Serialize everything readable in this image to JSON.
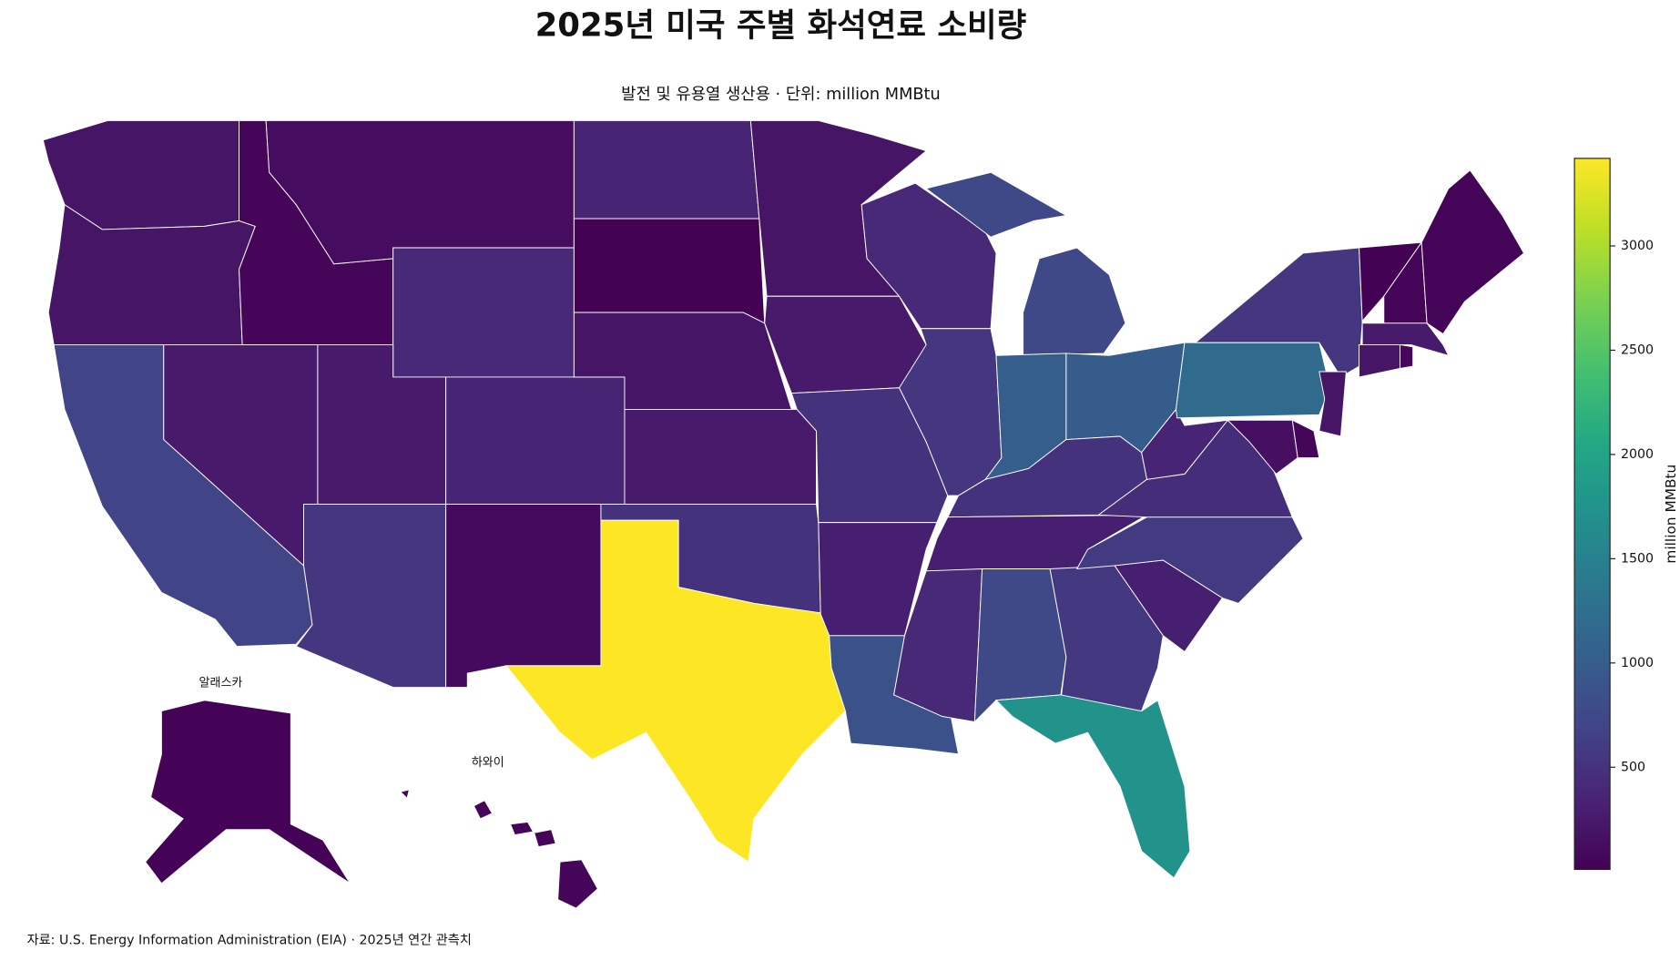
{
  "chart_data": {
    "type": "choropleth",
    "title": "2025년 미국 주별 화석연료 소비량",
    "subtitle": "발전 및 유용열 생산용 · 단위: million MMBtu",
    "source": "자료: U.S. Energy Information Administration (EIA) · 2025년 연간 관측치",
    "annotations": [
      "알래스카",
      "하와이"
    ],
    "colorbar_label": "million MMBtu",
    "colormap": "viridis",
    "zlim": [
      10,
      3420
    ],
    "zticks": [
      500,
      1000,
      1500,
      2000,
      2500,
      3000
    ],
    "values": [
      200,
      200,
      700,
      250,
      60,
      120,
      400,
      250,
      350,
      550,
      100,
      350,
      20,
      200,
      250,
      500,
      3420,
      200,
      250,
      500,
      300,
      860,
      400,
      550,
      760,
      1020,
      1000,
      500,
      300,
      400,
      760,
      560,
      1750,
      300,
      600,
      450,
      350,
      1200,
      550,
      200,
      60,
      150,
      20,
      50,
      40,
      250,
      200,
      60,
      30,
      60
    ]
  }
}
